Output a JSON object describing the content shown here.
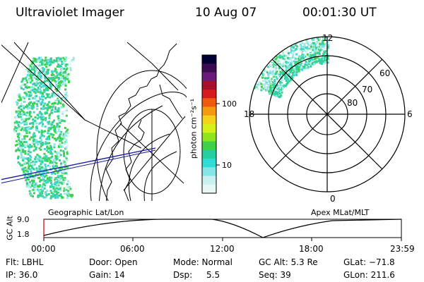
{
  "header": {
    "instrument": "Ultraviolet Imager",
    "date": "10 Aug 07",
    "time": "00:01:30 UT"
  },
  "colorbar": {
    "unit_label": "photon cm⁻²s⁻¹",
    "ticks": [
      "100",
      "10"
    ],
    "colors": [
      "#000033",
      "#3b0a52",
      "#6a1a7a",
      "#a8102a",
      "#d41a1a",
      "#f05a10",
      "#f59a10",
      "#f5d21a",
      "#d8f01a",
      "#8ee61a",
      "#3ed24a",
      "#25cfa0",
      "#2edcd8",
      "#86e6e6",
      "#c8f0f0",
      "#e8f6f6"
    ]
  },
  "panels": {
    "left_label": "Geographic Lat/Lon",
    "right_label": "Apex MLat/MLT"
  },
  "polar": {
    "mlt_labels": {
      "top": "12",
      "right": "6",
      "bottom": "0",
      "left": "18"
    },
    "lat_labels": [
      "60",
      "70",
      "80"
    ]
  },
  "altitude_plot": {
    "ylabel": "GC Alt",
    "y_ticks": [
      "9.0",
      "1.8"
    ],
    "x_ticks": [
      "00:00",
      "06:00",
      "12:00",
      "18:00",
      "23:59"
    ]
  },
  "footer": {
    "row1": [
      "Flt: LBHL",
      "Door: Open",
      "Mode: Normal",
      "GC Alt: 5.3 Re",
      "GLat: −71.8"
    ],
    "row2": [
      "IP: 36.0",
      "Gain: 14",
      "Dsp:",
      "5.5",
      "Seq: 39",
      "GLon: 211.6"
    ]
  },
  "colors": {
    "orbit_line": "#000000",
    "orbit_axis": "#cc0000",
    "track_blue": "#1a1aa0"
  }
}
